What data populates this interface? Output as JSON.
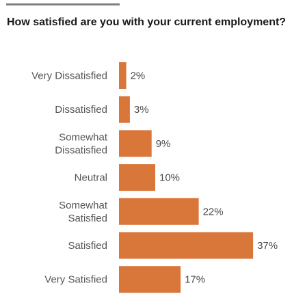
{
  "chart_data": {
    "type": "bar",
    "orientation": "horizontal",
    "title": "How satisfied are you with your current employment?",
    "categories": [
      "Very Dissatisfied",
      "Dissatisfied",
      "Somewhat Dissatisfied",
      "Neutral",
      "Somewhat Satisfied",
      "Satisfied",
      "Very Satisfied"
    ],
    "values": [
      2,
      3,
      9,
      10,
      22,
      37,
      17
    ],
    "value_labels": [
      "2%",
      "3%",
      "9%",
      "10%",
      "22%",
      "37%",
      "17%"
    ],
    "bar_color": "#d9763a",
    "grid": false,
    "legend": "none"
  }
}
